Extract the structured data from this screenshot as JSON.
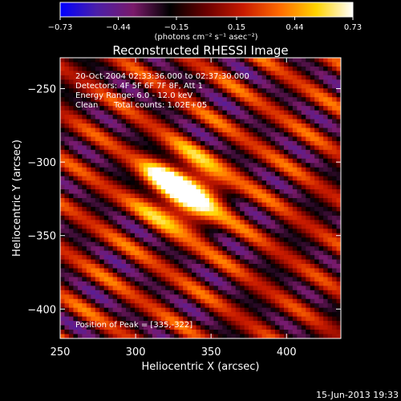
{
  "colorbar": {
    "tick_labels": [
      "-0.73",
      "-0.44",
      "-0.15",
      "0.15",
      "0.44",
      "0.73"
    ],
    "tick_values": [
      -0.73,
      -0.44,
      -0.15,
      0.15,
      0.44,
      0.73
    ],
    "range": [
      -0.73,
      0.73
    ],
    "unit_label": "(photons cm⁻² s⁻¹ asec⁻²)",
    "colors": [
      "#0000ff",
      "#4b1fa8",
      "#7a1a6a",
      "#000000",
      "#6b0000",
      "#c81a00",
      "#ff6a00",
      "#ffd400",
      "#ffffff"
    ]
  },
  "chart_data": {
    "type": "heatmap",
    "title": "Reconstructed RHESSI Image",
    "xlabel": "Heliocentric X (arcsec)",
    "ylabel": "Heliocentric Y (arcsec)",
    "xlim": [
      250,
      436
    ],
    "ylim": [
      -420,
      -229
    ],
    "x_ticks": [
      250,
      300,
      350,
      400
    ],
    "y_ticks": [
      -250,
      -300,
      -350,
      -400
    ],
    "x_tick_labels": [
      "250",
      "300",
      "350",
      "400"
    ],
    "y_tick_labels": [
      "−250",
      "−300",
      "−350",
      "−400"
    ],
    "peak": [
      335,
      -322
    ],
    "colormap": "blue-purple-black-red-yellow-white",
    "value_range": [
      -0.73,
      0.73
    ],
    "annotations": {
      "time": "20-Oct-2004 02:33:36.000 to 02:37:30.000",
      "detectors": "Detectors: 4F 5F 6F 7F 8F, Att 1",
      "energy": "Energy Range: 6.0 - 12.0 keV",
      "method": "Clean",
      "counts": "Total counts: 1.02E+05",
      "peak_text": "Position of Peak = [335,-322]"
    }
  },
  "footer": {
    "timestamp": "15-Jun-2013 19:33"
  }
}
